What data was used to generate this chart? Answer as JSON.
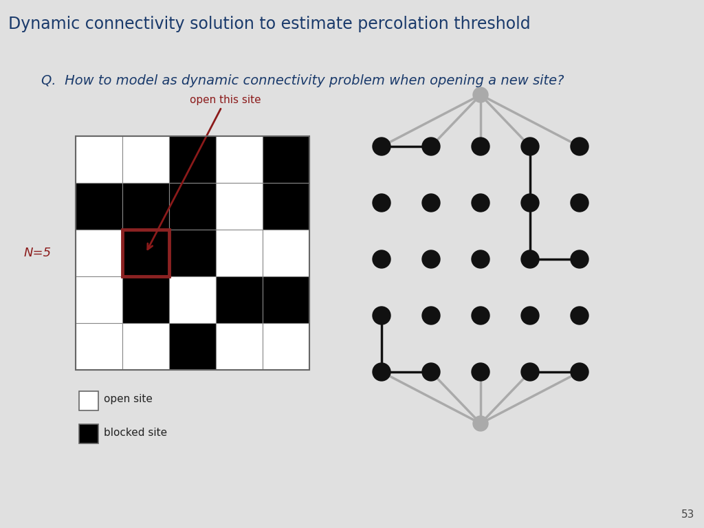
{
  "title": "Dynamic connectivity solution to estimate percolation threshold",
  "question": "Q.  How to model as dynamic connectivity problem when opening a new site?",
  "bg_color": "#e0e0e0",
  "title_bg": "#ffffff",
  "title_color": "#1a3a6b",
  "question_color": "#1a3a6b",
  "n_label": "N=5",
  "n_label_color": "#8b1a1a",
  "open_this_site_text": "open this site",
  "open_this_site_color": "#8b1a1a",
  "grid_n": 5,
  "grid_data": [
    [
      1,
      1,
      0,
      1,
      0
    ],
    [
      0,
      0,
      0,
      1,
      0
    ],
    [
      1,
      0,
      0,
      1,
      1
    ],
    [
      1,
      0,
      1,
      0,
      0
    ],
    [
      1,
      1,
      0,
      1,
      1
    ]
  ],
  "highlighted_cell": [
    2,
    1
  ],
  "highlight_color": "#8b2222",
  "white_color": "#ffffff",
  "black_color": "#000000",
  "graph_node_color": "#111111",
  "graph_edge_color": "#111111",
  "virtual_node_color": "#aaaaaa",
  "virtual_edge_color": "#aaaaaa",
  "black_edges": [
    [
      [
        0,
        0
      ],
      [
        1,
        0
      ]
    ],
    [
      [
        3,
        0
      ],
      [
        3,
        1
      ]
    ],
    [
      [
        3,
        1
      ],
      [
        3,
        2
      ]
    ],
    [
      [
        3,
        2
      ],
      [
        4,
        2
      ]
    ],
    [
      [
        0,
        3
      ],
      [
        0,
        4
      ]
    ],
    [
      [
        0,
        4
      ],
      [
        1,
        4
      ]
    ],
    [
      [
        3,
        4
      ],
      [
        4,
        4
      ]
    ]
  ]
}
